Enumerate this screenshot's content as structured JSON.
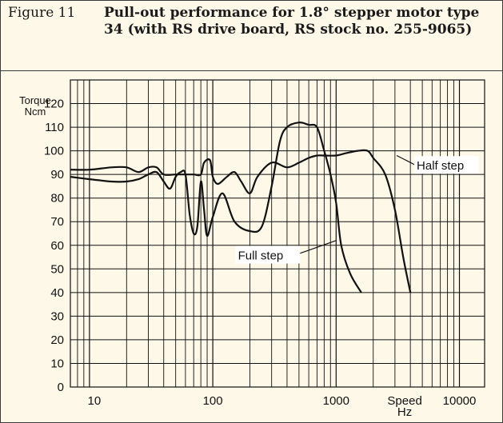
{
  "figure": {
    "number": "Figure 11",
    "title_parts": [
      "Pull-out performance for 1.8° stepper motor type 34 (with ",
      "RS",
      " drive board, ",
      "RS",
      " stock no. 255-9065)"
    ]
  },
  "chart_data": {
    "type": "line",
    "x_scale": "log",
    "xlim": [
      7,
      16000
    ],
    "ylim": [
      0,
      130
    ],
    "grid": true,
    "ylabel_lines": [
      "Torque",
      "Ncm"
    ],
    "xlabel_lines": [
      "Speed",
      "Hz"
    ],
    "y_ticks": [
      0,
      10,
      20,
      30,
      40,
      50,
      60,
      70,
      80,
      90,
      100,
      110,
      120
    ],
    "x_tick_labels": [
      {
        "value": 10,
        "label": "10"
      },
      {
        "value": 100,
        "label": "100"
      },
      {
        "value": 1000,
        "label": "1000"
      },
      {
        "value": 10000,
        "label": "10000"
      }
    ],
    "series": [
      {
        "name": "Half step",
        "points": [
          [
            7,
            92
          ],
          [
            10,
            92
          ],
          [
            15,
            93
          ],
          [
            20,
            93
          ],
          [
            25,
            91
          ],
          [
            30,
            93
          ],
          [
            35,
            93
          ],
          [
            40,
            90
          ],
          [
            50,
            90
          ],
          [
            60,
            90
          ],
          [
            70,
            90
          ],
          [
            80,
            90
          ],
          [
            85,
            95
          ],
          [
            95,
            96
          ],
          [
            100,
            89
          ],
          [
            110,
            86
          ],
          [
            130,
            89
          ],
          [
            150,
            91
          ],
          [
            170,
            87
          ],
          [
            200,
            82
          ],
          [
            230,
            89
          ],
          [
            300,
            95
          ],
          [
            400,
            93
          ],
          [
            500,
            95
          ],
          [
            600,
            97
          ],
          [
            700,
            98
          ],
          [
            800,
            98
          ],
          [
            1000,
            98
          ],
          [
            1200,
            99
          ],
          [
            1500,
            100
          ],
          [
            1800,
            100
          ],
          [
            2000,
            97
          ],
          [
            2500,
            90
          ],
          [
            3000,
            75
          ],
          [
            3500,
            55
          ],
          [
            4000,
            40
          ]
        ]
      },
      {
        "name": "Full step",
        "points": [
          [
            7,
            89
          ],
          [
            10,
            88
          ],
          [
            15,
            87
          ],
          [
            20,
            87
          ],
          [
            25,
            88
          ],
          [
            30,
            90
          ],
          [
            35,
            91
          ],
          [
            40,
            87
          ],
          [
            45,
            84
          ],
          [
            50,
            89
          ],
          [
            55,
            91
          ],
          [
            60,
            90
          ],
          [
            65,
            73
          ],
          [
            70,
            65
          ],
          [
            75,
            68
          ],
          [
            80,
            87
          ],
          [
            85,
            75
          ],
          [
            90,
            64
          ],
          [
            100,
            72
          ],
          [
            120,
            82
          ],
          [
            150,
            70
          ],
          [
            200,
            66
          ],
          [
            250,
            68
          ],
          [
            300,
            85
          ],
          [
            350,
            104
          ],
          [
            400,
            110
          ],
          [
            500,
            112
          ],
          [
            600,
            111
          ],
          [
            700,
            110
          ],
          [
            800,
            100
          ],
          [
            900,
            90
          ],
          [
            1000,
            78
          ],
          [
            1100,
            60
          ],
          [
            1300,
            48
          ],
          [
            1600,
            40
          ]
        ]
      }
    ],
    "annotations": [
      {
        "text": "Half step",
        "x": 4500,
        "y": 92,
        "points_to": [
          3100,
          98
        ]
      },
      {
        "text": "Full step",
        "x": 160,
        "y": 54,
        "points_to": [
          1000,
          62
        ]
      }
    ]
  }
}
